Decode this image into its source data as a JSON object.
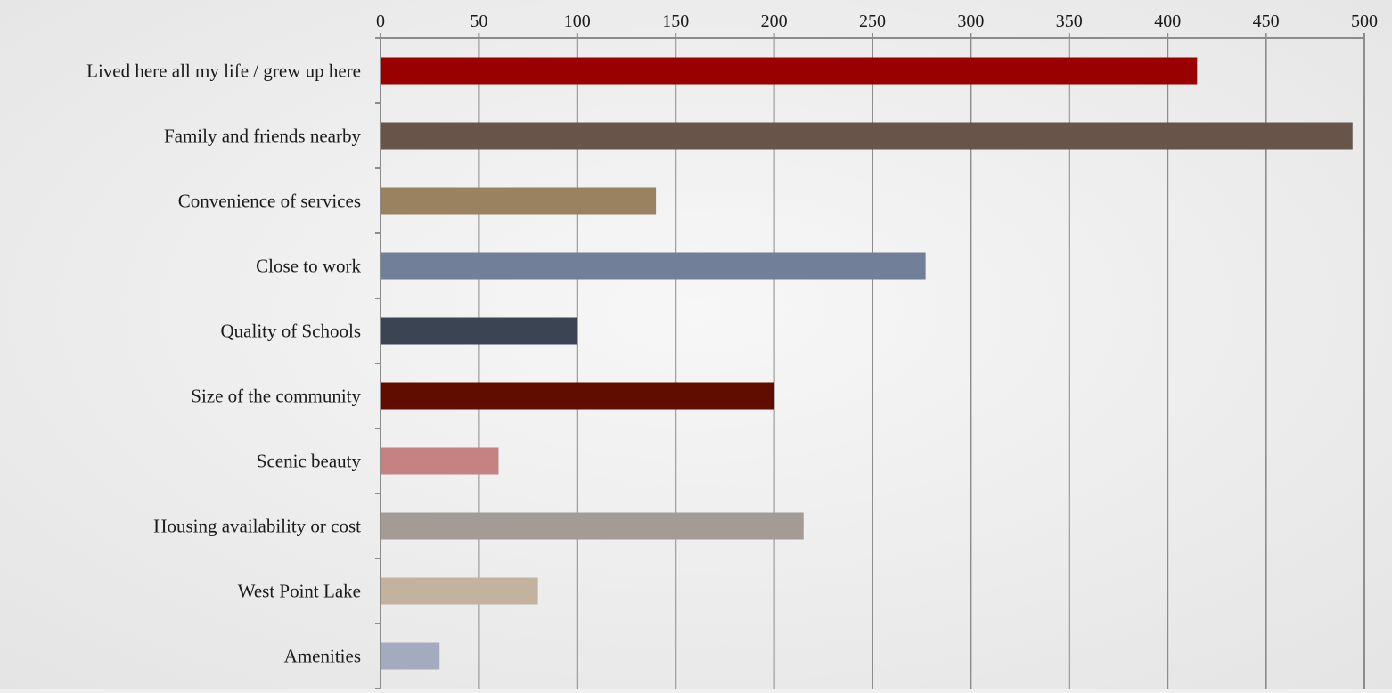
{
  "chart_data": {
    "type": "bar",
    "orientation": "horizontal",
    "categories": [
      "Lived here all my life / grew up here",
      "Family and friends nearby",
      "Convenience of services",
      "Close to work",
      "Quality of Schools",
      "Size of the community",
      "Scenic beauty",
      "Housing availability or cost",
      "West Point Lake",
      "Amenities"
    ],
    "values": [
      415,
      494,
      140,
      277,
      100,
      200,
      60,
      215,
      80,
      30
    ],
    "colors": [
      "#990000",
      "#67554a",
      "#9a8160",
      "#727f98",
      "#3a4452",
      "#600d00",
      "#c48282",
      "#a39b94",
      "#c3b39e",
      "#a5abbf"
    ],
    "xlim": [
      0,
      500
    ],
    "xticks": [
      "0",
      "50",
      "100",
      "150",
      "200",
      "250",
      "300",
      "350",
      "400",
      "450",
      "500"
    ],
    "axis_position": "top",
    "grid": true,
    "legend": "none",
    "title": "",
    "xlabel": "",
    "ylabel": ""
  }
}
